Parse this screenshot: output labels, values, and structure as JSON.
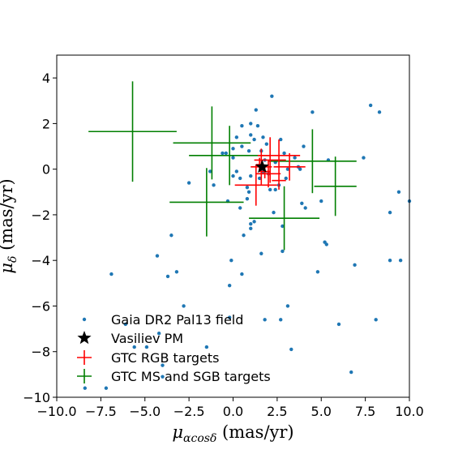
{
  "chart_data": {
    "type": "scatter",
    "xlabel": "μαcosδ (mas/yr)",
    "ylabel": "μδ (mas/yr)",
    "xlim": [
      -10,
      10
    ],
    "ylim": [
      -10,
      5
    ],
    "x_ticks": [
      -10,
      -7.5,
      -5,
      -2.5,
      0,
      2.5,
      5,
      7.5,
      10
    ],
    "x_tick_labels": [
      "−10.0",
      "−7.5",
      "−5.0",
      "−2.5",
      "0.0",
      "2.5",
      "5.0",
      "7.5",
      "10.0"
    ],
    "y_ticks": [
      -10,
      -8,
      -6,
      -4,
      -2,
      0,
      2,
      4
    ],
    "y_tick_labels": [
      "−10",
      "−8",
      "−6",
      "−4",
      "−2",
      "0",
      "2",
      "4"
    ],
    "grid": false,
    "legend_position": "lower-left",
    "series": [
      {
        "name": "Gaia DR2 Pal13 field",
        "marker": "dot",
        "color": "#1f77b4",
        "points": [
          [
            -8.4,
            -9.6
          ],
          [
            -7.2,
            -9.6
          ],
          [
            -6.9,
            -4.6
          ],
          [
            -6.1,
            -6.8
          ],
          [
            -5.6,
            -7.8
          ],
          [
            -4.9,
            -7.8
          ],
          [
            -4.3,
            -3.8
          ],
          [
            -4.2,
            -7.2
          ],
          [
            -4.0,
            -8.6
          ],
          [
            -4.0,
            -9.1
          ],
          [
            -3.7,
            -4.7
          ],
          [
            -3.5,
            -2.9
          ],
          [
            -3.2,
            -4.5
          ],
          [
            -2.8,
            -6.0
          ],
          [
            -2.5,
            -0.6
          ],
          [
            -1.5,
            -7.8
          ],
          [
            -1.3,
            -0.1
          ],
          [
            -1.1,
            -0.7
          ],
          [
            -0.6,
            0.7
          ],
          [
            -0.4,
            0.7
          ],
          [
            -0.3,
            -1.4
          ],
          [
            -0.2,
            -5.1
          ],
          [
            -0.2,
            -6.5
          ],
          [
            -0.1,
            -4.0
          ],
          [
            0.0,
            0.9
          ],
          [
            0.0,
            -0.3
          ],
          [
            0.0,
            0.5
          ],
          [
            0.2,
            -0.1
          ],
          [
            0.2,
            1.4
          ],
          [
            0.4,
            -0.4
          ],
          [
            0.4,
            -1.7
          ],
          [
            0.5,
            1.0
          ],
          [
            0.5,
            1.9
          ],
          [
            0.5,
            -4.6
          ],
          [
            0.6,
            -2.9
          ],
          [
            0.8,
            -0.8
          ],
          [
            0.8,
            -1.3
          ],
          [
            0.9,
            0.8
          ],
          [
            0.9,
            -1.0
          ],
          [
            1.0,
            1.5
          ],
          [
            1.0,
            -0.3
          ],
          [
            1.0,
            -2.4
          ],
          [
            1.0,
            -2.6
          ],
          [
            1.0,
            2.0
          ],
          [
            1.2,
            -2.3
          ],
          [
            1.2,
            1.3
          ],
          [
            1.3,
            2.6
          ],
          [
            1.4,
            1.9
          ],
          [
            1.5,
            -0.4
          ],
          [
            1.6,
            0.8
          ],
          [
            1.6,
            -3.7
          ],
          [
            1.7,
            1.4
          ],
          [
            1.7,
            -0.1
          ],
          [
            1.8,
            0.4
          ],
          [
            1.8,
            -6.6
          ],
          [
            1.9,
            1.1
          ],
          [
            2.0,
            -0.2
          ],
          [
            2.1,
            -0.9
          ],
          [
            2.2,
            3.2
          ],
          [
            2.3,
            -1.9
          ],
          [
            2.4,
            0.3
          ],
          [
            2.4,
            -0.9
          ],
          [
            2.6,
            -0.7
          ],
          [
            2.7,
            1.3
          ],
          [
            2.7,
            -6.6
          ],
          [
            2.8,
            -2.5
          ],
          [
            2.8,
            -3.6
          ],
          [
            2.9,
            0.7
          ],
          [
            3.0,
            -0.4
          ],
          [
            3.1,
            -6.0
          ],
          [
            3.1,
            0.0
          ],
          [
            3.3,
            -7.9
          ],
          [
            3.5,
            0.5
          ],
          [
            3.7,
            0.1
          ],
          [
            3.8,
            0.0
          ],
          [
            3.9,
            -1.5
          ],
          [
            4.0,
            1.0
          ],
          [
            4.1,
            -1.7
          ],
          [
            4.5,
            2.5
          ],
          [
            4.8,
            -4.5
          ],
          [
            5.0,
            -1.4
          ],
          [
            5.2,
            -3.2
          ],
          [
            5.3,
            -3.3
          ],
          [
            5.4,
            0.4
          ],
          [
            6.0,
            -6.8
          ],
          [
            6.7,
            -8.9
          ],
          [
            6.9,
            -4.2
          ],
          [
            7.4,
            0.5
          ],
          [
            7.8,
            2.8
          ],
          [
            8.1,
            -6.6
          ],
          [
            8.3,
            2.5
          ],
          [
            8.9,
            -1.9
          ],
          [
            8.9,
            -4.0
          ],
          [
            9.4,
            -1.0
          ],
          [
            9.5,
            -4.0
          ],
          [
            10.0,
            -1.4
          ]
        ]
      },
      {
        "name": "Vasiliev PM",
        "marker": "star",
        "color": "#000000",
        "points": [
          [
            1.65,
            0.1
          ]
        ]
      },
      {
        "name": "GTC RGB targets",
        "marker": "errorbar",
        "color": "#ff0000",
        "points": [
          {
            "x": 1.6,
            "y": 0.1,
            "xerr": 0.6,
            "yerr": 0.8
          },
          {
            "x": 2.1,
            "y": 0.4,
            "xerr": 0.9,
            "yerr": 1.0
          },
          {
            "x": 2.6,
            "y": 0.6,
            "xerr": 1.2,
            "yerr": 0.7
          },
          {
            "x": 3.2,
            "y": 0.1,
            "xerr": 0.9,
            "yerr": 0.6
          },
          {
            "x": 1.3,
            "y": -0.7,
            "xerr": 1.2,
            "yerr": 0.9
          },
          {
            "x": 2.0,
            "y": -0.2,
            "xerr": 0.7,
            "yerr": 0.6
          },
          {
            "x": 2.6,
            "y": -0.5,
            "xerr": 0.4,
            "yerr": 0.4
          },
          {
            "x": 1.8,
            "y": -0.1,
            "xerr": 0.3,
            "yerr": 0.3
          },
          {
            "x": 1.5,
            "y": 0.2,
            "xerr": 0.2,
            "yerr": 0.3
          }
        ]
      },
      {
        "name": "GTC MS and SGB targets",
        "marker": "errorbar",
        "color": "#007f00",
        "points": [
          {
            "x": -5.7,
            "y": 1.65,
            "xerr": 2.5,
            "yerr": 2.2
          },
          {
            "x": -1.2,
            "y": 1.15,
            "xerr": 2.2,
            "yerr": 1.6
          },
          {
            "x": -0.2,
            "y": 0.6,
            "xerr": 2.3,
            "yerr": 1.3
          },
          {
            "x": -1.5,
            "y": -1.45,
            "xerr": 2.1,
            "yerr": 1.5
          },
          {
            "x": 2.9,
            "y": -2.15,
            "xerr": 2.0,
            "yerr": 1.4
          },
          {
            "x": 4.5,
            "y": 0.35,
            "xerr": 2.5,
            "yerr": 1.4
          },
          {
            "x": 5.8,
            "y": -0.75,
            "xerr": 1.2,
            "yerr": 1.3
          }
        ]
      }
    ]
  }
}
